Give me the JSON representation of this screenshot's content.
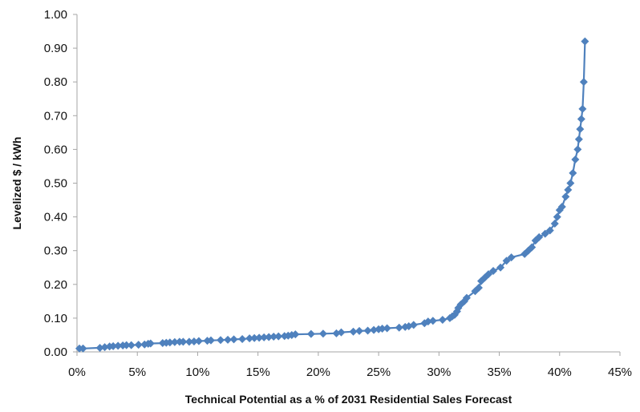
{
  "chart_data": {
    "type": "line",
    "title": "",
    "xlabel": "Technical Potential as a % of 2031 Residential Sales Forecast",
    "ylabel": "Levelized $ / kWh",
    "xlim": [
      0,
      45
    ],
    "ylim": [
      0,
      1.0
    ],
    "x_ticks": [
      "0%",
      "5%",
      "10%",
      "15%",
      "20%",
      "25%",
      "30%",
      "35%",
      "40%",
      "45%"
    ],
    "x_tick_values": [
      0,
      5,
      10,
      15,
      20,
      25,
      30,
      35,
      40,
      45
    ],
    "y_ticks": [
      "0.00",
      "0.10",
      "0.20",
      "0.30",
      "0.40",
      "0.50",
      "0.60",
      "0.70",
      "0.80",
      "0.90",
      "1.00"
    ],
    "y_tick_values": [
      0,
      0.1,
      0.2,
      0.3,
      0.4,
      0.5,
      0.6,
      0.7,
      0.8,
      0.9,
      1.0
    ],
    "grid": false,
    "legend": "none",
    "marker": "diamond",
    "colors": {
      "series": "#4f81bd",
      "axis": "#a6a6a6",
      "text": "#111111"
    },
    "series": [
      {
        "x": [
          0.2,
          0.5,
          1.9,
          2.3,
          2.7,
          3.0,
          3.4,
          3.8,
          4.1,
          4.5,
          5.1,
          5.6,
          5.9,
          6.1,
          7.1,
          7.4,
          7.7,
          8.1,
          8.5,
          8.8,
          9.3,
          9.7,
          10.1,
          10.8,
          11.1,
          11.9,
          12.5,
          13.0,
          13.7,
          14.3,
          14.7,
          15.1,
          15.5,
          15.9,
          16.3,
          16.7,
          17.2,
          17.5,
          17.8,
          18.1,
          19.4,
          20.4,
          21.5,
          21.9,
          22.9,
          23.4,
          24.1,
          24.6,
          25.0,
          25.3,
          25.7,
          26.7,
          27.2,
          27.5,
          27.9,
          28.8,
          29.1,
          29.5,
          30.3,
          30.9,
          31.1,
          31.3,
          31.5,
          31.6,
          31.8,
          32.1,
          32.3,
          33.0,
          33.3,
          33.5,
          33.8,
          34.1,
          34.5,
          35.1,
          35.6,
          36.0,
          37.1,
          37.4,
          37.7,
          38.0,
          38.3,
          38.8,
          39.2,
          39.6,
          39.8,
          40.0,
          40.2,
          40.5,
          40.7,
          40.9,
          41.1,
          41.3,
          41.5,
          41.6,
          41.7,
          41.8,
          41.9,
          42.0,
          42.1
        ],
        "y": [
          0.01,
          0.01,
          0.012,
          0.014,
          0.016,
          0.017,
          0.018,
          0.019,
          0.02,
          0.02,
          0.021,
          0.022,
          0.024,
          0.025,
          0.026,
          0.027,
          0.028,
          0.029,
          0.03,
          0.03,
          0.03,
          0.031,
          0.032,
          0.033,
          0.034,
          0.035,
          0.036,
          0.037,
          0.038,
          0.04,
          0.041,
          0.042,
          0.043,
          0.044,
          0.045,
          0.046,
          0.047,
          0.048,
          0.05,
          0.052,
          0.053,
          0.054,
          0.055,
          0.058,
          0.06,
          0.062,
          0.063,
          0.065,
          0.067,
          0.069,
          0.07,
          0.072,
          0.074,
          0.076,
          0.08,
          0.085,
          0.09,
          0.092,
          0.095,
          0.1,
          0.105,
          0.11,
          0.12,
          0.13,
          0.14,
          0.15,
          0.16,
          0.18,
          0.19,
          0.21,
          0.22,
          0.23,
          0.24,
          0.25,
          0.27,
          0.28,
          0.29,
          0.3,
          0.31,
          0.33,
          0.34,
          0.35,
          0.36,
          0.38,
          0.4,
          0.42,
          0.43,
          0.46,
          0.48,
          0.5,
          0.53,
          0.57,
          0.6,
          0.63,
          0.66,
          0.69,
          0.72,
          0.8,
          0.92
        ]
      }
    ]
  }
}
